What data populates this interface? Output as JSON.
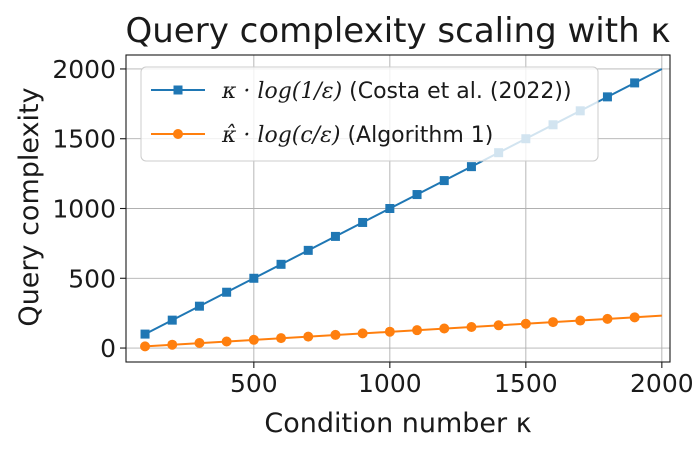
{
  "chart_data": {
    "type": "line",
    "title": "Query complexity scaling with κ",
    "xlabel": "Condition number κ",
    "ylabel": "Query complexity",
    "xlim": [
      30,
      2030
    ],
    "ylim": [
      -100,
      2100
    ],
    "xticks": [
      500,
      1000,
      1500,
      2000
    ],
    "yticks": [
      0,
      500,
      1000,
      1500,
      2000
    ],
    "grid": true,
    "legend_position": "upper-left",
    "series": [
      {
        "name": "κ · log(1/ε) (Costa et al. (2022))",
        "name_math": "κ · log(1/ε)",
        "name_text": "(Costa et al. (2022))",
        "color": "#1f77b4",
        "marker": "square",
        "line_x": [
          100,
          2000
        ],
        "line_y": [
          100,
          2000
        ],
        "marker_x": [
          100,
          200,
          300,
          400,
          500,
          600,
          700,
          800,
          900,
          1000,
          1100,
          1200,
          1300,
          1400,
          1500,
          1600,
          1700,
          1800,
          1900
        ],
        "marker_y": [
          100,
          200,
          300,
          400,
          500,
          600,
          700,
          800,
          900,
          1000,
          1100,
          1200,
          1300,
          1400,
          1500,
          1600,
          1700,
          1800,
          1900
        ]
      },
      {
        "name": "κ̂ · log(c/ε) (Algorithm 1)",
        "name_math": "κ̂ · log(c/ε)",
        "name_text": "(Algorithm 1)",
        "color": "#ff7f0e",
        "marker": "circle",
        "line_x": [
          100,
          2000
        ],
        "line_y": [
          12,
          232
        ],
        "marker_x": [
          100,
          200,
          300,
          400,
          500,
          600,
          700,
          800,
          900,
          1000,
          1100,
          1200,
          1300,
          1400,
          1500,
          1600,
          1700,
          1800,
          1900
        ],
        "marker_y": [
          12,
          24,
          36,
          47,
          59,
          71,
          82,
          94,
          105,
          117,
          128,
          140,
          151,
          163,
          174,
          186,
          197,
          209,
          220
        ]
      }
    ]
  }
}
